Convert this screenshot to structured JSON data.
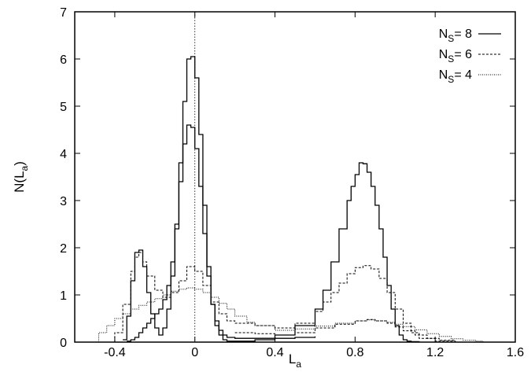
{
  "chart_data": {
    "type": "line",
    "style": "step-histogram",
    "xlabel": "L",
    "xlabel_sub": "a",
    "ylabel": "N(L",
    "ylabel_sub": "a",
    "ylabel_close": ")",
    "xlim": [
      -0.6,
      1.6
    ],
    "ylim": [
      0,
      7
    ],
    "x_ticks": [
      -0.4,
      0,
      0.4,
      0.8,
      1.2,
      1.6
    ],
    "x_tick_labels": [
      "-0.4",
      "0",
      "0.4",
      "0.8",
      "1.2",
      "1.6"
    ],
    "y_ticks": [
      0,
      1,
      2,
      3,
      4,
      5,
      6,
      7
    ],
    "y_tick_labels": [
      "0",
      "1",
      "2",
      "3",
      "4",
      "5",
      "6",
      "7"
    ],
    "grid": false,
    "reference_line_x": 0,
    "legend_position": "top-right",
    "legend": [
      {
        "prefix": "N",
        "sub": "S",
        "suffix": "= 8",
        "style": "solid"
      },
      {
        "prefix": "N",
        "sub": "S",
        "suffix": "= 6",
        "style": "dashed"
      },
      {
        "prefix": "N",
        "sub": "S",
        "suffix": "= 4",
        "style": "dotted"
      }
    ],
    "series": [
      {
        "line_style": "solid",
        "x": [
          -0.36,
          -0.34,
          -0.32,
          -0.3,
          -0.28,
          -0.26,
          -0.24,
          -0.22,
          -0.2,
          -0.18,
          -0.16,
          -0.14,
          -0.12,
          -0.1,
          -0.08,
          -0.06,
          -0.04,
          -0.02,
          0,
          0.02,
          0.04,
          0.06,
          0.08,
          0.1,
          0.12,
          0.14,
          0.16,
          0.2,
          0.3,
          0.4,
          0.5,
          0.6,
          0.64,
          0.68,
          0.72,
          0.76,
          0.78,
          0.8,
          0.82,
          0.84,
          0.86,
          0.88,
          0.9,
          0.92,
          0.94,
          0.96,
          0.98,
          1,
          1.02,
          1.04,
          1.06,
          1.08,
          1.12
        ],
        "y": [
          0.05,
          0.55,
          1.3,
          1.9,
          1.95,
          1.6,
          1.05,
          0.6,
          0.3,
          0.15,
          0.3,
          0.7,
          1.4,
          2.4,
          3.8,
          5.1,
          6.0,
          6.05,
          5.6,
          4.4,
          2.9,
          1.6,
          0.8,
          0.35,
          0.15,
          0.05,
          0.02,
          0.02,
          0.05,
          0.15,
          0.35,
          0.7,
          1.1,
          1.7,
          2.4,
          3.0,
          3.3,
          3.55,
          3.8,
          3.78,
          3.6,
          3.3,
          2.9,
          2.4,
          1.8,
          1.2,
          0.7,
          0.35,
          0.15,
          0.05,
          0.02,
          0.01,
          0
        ]
      },
      {
        "line_style": "solid",
        "x": [
          -0.34,
          -0.32,
          -0.3,
          -0.28,
          -0.26,
          -0.24,
          -0.22,
          -0.2,
          -0.18,
          -0.16,
          -0.14,
          -0.12,
          -0.1,
          -0.08,
          -0.06,
          -0.04,
          -0.02,
          0,
          0.02,
          0.04,
          0.06,
          0.08,
          0.1,
          0.12,
          0.14,
          0.16,
          0.2,
          0.3,
          0.4,
          0.5,
          0.6
        ],
        "y": [
          0.02,
          0.05,
          0.1,
          0.2,
          0.3,
          0.4,
          0.5,
          0.6,
          0.7,
          0.9,
          1.2,
          1.7,
          2.5,
          3.4,
          4.2,
          4.6,
          4.55,
          4.1,
          3.3,
          2.3,
          1.4,
          0.8,
          0.45,
          0.25,
          0.15,
          0.1,
          0.08,
          0.08,
          0.08,
          0.1,
          0.12
        ]
      },
      {
        "line_style": "dashed",
        "x": [
          -0.46,
          -0.4,
          -0.36,
          -0.32,
          -0.3,
          -0.28,
          -0.26,
          -0.24,
          -0.2,
          -0.16,
          -0.12,
          -0.08,
          -0.04,
          0,
          0.04,
          0.08,
          0.12,
          0.16,
          0.2,
          0.3,
          0.4,
          0.5,
          0.6,
          0.64,
          0.68,
          0.72,
          0.76,
          0.8,
          0.84,
          0.88,
          0.92,
          0.96,
          1,
          1.04,
          1.08,
          1.12,
          1.2,
          1.3,
          1.4
        ],
        "y": [
          0,
          0.2,
          0.8,
          1.5,
          1.8,
          1.9,
          1.7,
          1.4,
          1.1,
          0.95,
          1.05,
          1.3,
          1.6,
          1.5,
          1.2,
          0.85,
          0.6,
          0.45,
          0.4,
          0.35,
          0.3,
          0.4,
          0.65,
          0.85,
          1.05,
          1.25,
          1.45,
          1.58,
          1.62,
          1.55,
          1.35,
          1.05,
          0.7,
          0.4,
          0.2,
          0.08,
          0.02,
          0,
          0
        ]
      },
      {
        "line_style": "dotted",
        "x": [
          -0.52,
          -0.48,
          -0.44,
          -0.4,
          -0.36,
          -0.32,
          -0.28,
          -0.24,
          -0.2,
          -0.16,
          -0.12,
          -0.08,
          -0.04,
          0,
          0.04,
          0.08,
          0.12,
          0.16,
          0.2,
          0.26,
          0.3,
          0.4,
          0.5,
          0.6,
          0.7,
          0.8,
          0.86,
          0.9,
          0.96,
          1,
          1.04,
          1.1,
          1.16,
          1.22,
          1.28,
          1.34,
          1.4,
          1.44
        ],
        "y": [
          0,
          0.2,
          0.35,
          0.5,
          0.6,
          0.7,
          0.78,
          0.85,
          0.92,
          1.0,
          1.08,
          1.12,
          1.15,
          1.12,
          1.05,
          0.95,
          0.82,
          0.7,
          0.55,
          0.42,
          0.35,
          0.25,
          0.28,
          0.34,
          0.4,
          0.45,
          0.47,
          0.45,
          0.42,
          0.38,
          0.33,
          0.26,
          0.18,
          0.12,
          0.07,
          0.04,
          0.02,
          0
        ]
      },
      {
        "line_style": "dashed",
        "x": [
          0.2,
          0.3,
          0.4,
          0.5,
          0.6,
          0.7,
          0.8,
          0.86,
          0.9,
          0.96,
          1.0,
          1.04,
          1.1,
          1.16,
          1.22,
          1.3
        ],
        "y": [
          0.2,
          0.18,
          0.15,
          0.2,
          0.3,
          0.38,
          0.45,
          0.48,
          0.45,
          0.4,
          0.32,
          0.24,
          0.15,
          0.08,
          0.04,
          0.01
        ]
      }
    ]
  }
}
